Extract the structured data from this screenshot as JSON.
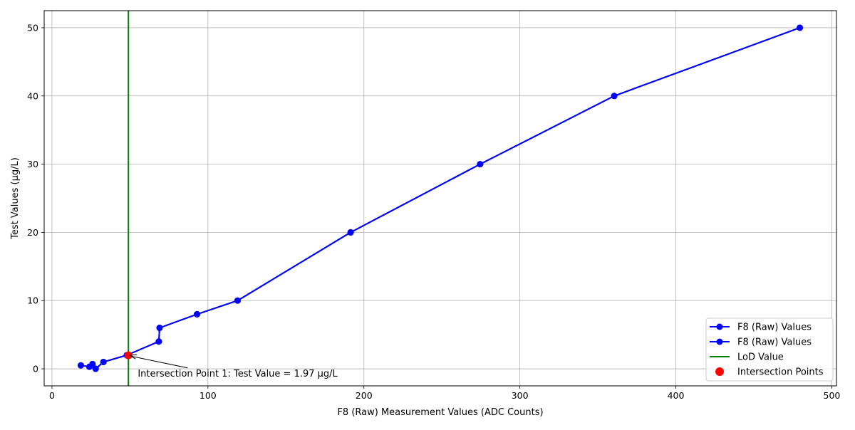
{
  "chart_data": {
    "type": "line",
    "title": "",
    "xlabel": "F8 (Raw) Measurement Values (ADC Counts)",
    "ylabel": "Test Values (µg/L)",
    "xlim": [
      -5,
      503
    ],
    "ylim": [
      -2.5,
      52.5
    ],
    "xticks": [
      0,
      100,
      200,
      300,
      400,
      500
    ],
    "yticks": [
      0,
      10,
      20,
      30,
      40,
      50
    ],
    "grid": true,
    "legend_position": "lower-right",
    "series": [
      {
        "name": "F8 (Raw) Values",
        "color": "#0000ff",
        "marker": "circle",
        "points": [
          {
            "x": 18.5,
            "y": 0.5
          },
          {
            "x": 24,
            "y": 0.3
          },
          {
            "x": 26,
            "y": 0.7
          },
          {
            "x": 28,
            "y": 0.0
          },
          {
            "x": 33,
            "y": 1.0
          },
          {
            "x": 48,
            "y": 2.0
          },
          {
            "x": 68.5,
            "y": 4.0
          },
          {
            "x": 69,
            "y": 6.0
          },
          {
            "x": 93,
            "y": 8.0
          },
          {
            "x": 119,
            "y": 10.0
          },
          {
            "x": 191.5,
            "y": 20.0
          },
          {
            "x": 274.5,
            "y": 30.0
          },
          {
            "x": 360.5,
            "y": 40.0
          },
          {
            "x": 479.5,
            "y": 50.0
          }
        ]
      },
      {
        "name": "F8 (Raw) Values",
        "color": "#0000ff",
        "marker": "circle",
        "points": [
          {
            "x": 18.5,
            "y": 0.5
          },
          {
            "x": 24,
            "y": 0.3
          },
          {
            "x": 26,
            "y": 0.7
          },
          {
            "x": 28,
            "y": 0.0
          },
          {
            "x": 33,
            "y": 1.0
          },
          {
            "x": 48,
            "y": 2.0
          },
          {
            "x": 68.5,
            "y": 4.0
          },
          {
            "x": 69,
            "y": 6.0
          },
          {
            "x": 93,
            "y": 8.0
          },
          {
            "x": 119,
            "y": 10.0
          },
          {
            "x": 191.5,
            "y": 20.0
          },
          {
            "x": 274.5,
            "y": 30.0
          },
          {
            "x": 360.5,
            "y": 40.0
          },
          {
            "x": 479.5,
            "y": 50.0
          }
        ]
      }
    ],
    "lod_line": {
      "name": "LoD Value",
      "x": 49,
      "color": "#008000"
    },
    "intersections": {
      "name": "Intersection Points",
      "color": "#ff0000",
      "points": [
        {
          "x": 49,
          "y": 1.97
        }
      ]
    },
    "annotation": {
      "text": "Intersection Point 1: Test Value = 1.97 µg/L",
      "x": 49,
      "y": 1.97,
      "text_x": 55,
      "text_y": -0.6
    }
  }
}
